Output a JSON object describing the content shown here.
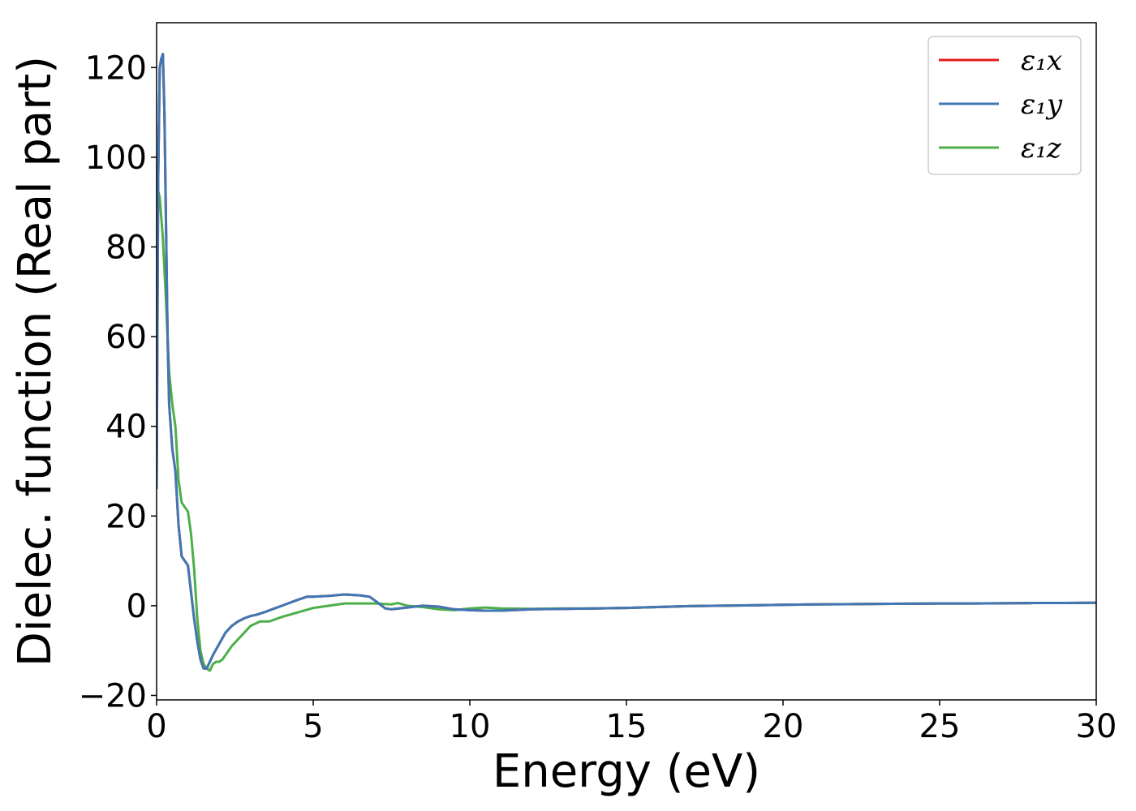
{
  "chart_data": {
    "type": "line",
    "title": "",
    "xlabel": "Energy (eV)",
    "ylabel": "Dielec. function (Real part)",
    "xlim": [
      0,
      30
    ],
    "ylim": [
      -21,
      130
    ],
    "xticks": [
      0,
      5,
      10,
      15,
      20,
      25,
      30
    ],
    "xtick_labels": [
      "0",
      "5",
      "10",
      "15",
      "20",
      "25",
      "30"
    ],
    "yticks": [
      -20,
      0,
      20,
      40,
      60,
      80,
      100,
      120
    ],
    "ytick_labels": [
      "−20",
      "0",
      "20",
      "40",
      "60",
      "80",
      "100",
      "120"
    ],
    "grid": false,
    "legend_position": "top-right",
    "series": [
      {
        "name": "ε₁x",
        "color": "#e41a1c",
        "x": [
          0,
          0.05,
          0.1,
          0.15,
          0.2,
          0.25,
          0.3,
          0.35,
          0.4,
          0.5,
          0.6,
          0.7,
          0.8,
          0.9,
          1.0,
          1.1,
          1.2,
          1.3,
          1.4,
          1.5,
          1.6,
          1.7,
          1.8,
          2.0,
          2.2,
          2.4,
          2.6,
          2.8,
          3.0,
          3.2,
          3.5,
          4.0,
          4.5,
          4.8,
          5.0,
          5.5,
          6.0,
          6.5,
          6.8,
          7.0,
          7.3,
          7.5,
          8.0,
          8.5,
          9.0,
          9.5,
          10.0,
          10.5,
          11.0,
          12.0,
          13.0,
          14.0,
          15.0,
          16.0,
          17.0,
          18.0,
          19.0,
          20.0,
          21.0,
          22.0,
          23.0,
          24.0,
          25.0,
          26.0,
          27.0,
          28.0,
          29.0,
          30.0
        ],
        "y": [
          26,
          95,
          120,
          122,
          123,
          110,
          85,
          60,
          45,
          35,
          30,
          18,
          11,
          10,
          9,
          3,
          -3,
          -8,
          -12,
          -14,
          -14,
          -12.5,
          -11,
          -8.5,
          -6,
          -4.5,
          -3.5,
          -2.8,
          -2.3,
          -2,
          -1.3,
          0,
          1.3,
          2,
          2,
          2.2,
          2.5,
          2.3,
          2.0,
          1.0,
          -0.6,
          -0.8,
          -0.4,
          0,
          -0.2,
          -0.8,
          -1.0,
          -1.1,
          -1.1,
          -0.8,
          -0.7,
          -0.6,
          -0.5,
          -0.3,
          -0.1,
          0.0,
          0.1,
          0.2,
          0.3,
          0.35,
          0.4,
          0.45,
          0.5,
          0.5,
          0.55,
          0.6,
          0.6,
          0.65
        ]
      },
      {
        "name": "ε₁y",
        "color": "#3f78b4",
        "x": [
          0,
          0.05,
          0.1,
          0.15,
          0.2,
          0.25,
          0.3,
          0.35,
          0.4,
          0.5,
          0.6,
          0.7,
          0.8,
          0.9,
          1.0,
          1.1,
          1.2,
          1.3,
          1.4,
          1.5,
          1.6,
          1.7,
          1.8,
          2.0,
          2.2,
          2.4,
          2.6,
          2.8,
          3.0,
          3.2,
          3.5,
          4.0,
          4.5,
          4.8,
          5.0,
          5.5,
          6.0,
          6.5,
          6.8,
          7.0,
          7.3,
          7.5,
          8.0,
          8.5,
          9.0,
          9.5,
          10.0,
          10.5,
          11.0,
          12.0,
          13.0,
          14.0,
          15.0,
          16.0,
          17.0,
          18.0,
          19.0,
          20.0,
          21.0,
          22.0,
          23.0,
          24.0,
          25.0,
          26.0,
          27.0,
          28.0,
          29.0,
          30.0
        ],
        "y": [
          26,
          95,
          120,
          122,
          123,
          110,
          85,
          60,
          45,
          35,
          30,
          18,
          11,
          10,
          9,
          3,
          -3,
          -8,
          -12,
          -14,
          -14,
          -12.5,
          -11,
          -8.5,
          -6,
          -4.5,
          -3.5,
          -2.8,
          -2.3,
          -2,
          -1.3,
          0,
          1.3,
          2,
          2,
          2.2,
          2.5,
          2.3,
          2.0,
          1.0,
          -0.6,
          -0.8,
          -0.4,
          0,
          -0.2,
          -0.8,
          -1.0,
          -1.1,
          -1.1,
          -0.8,
          -0.7,
          -0.6,
          -0.5,
          -0.3,
          -0.1,
          0.0,
          0.1,
          0.2,
          0.3,
          0.35,
          0.4,
          0.45,
          0.5,
          0.5,
          0.55,
          0.6,
          0.6,
          0.65
        ]
      },
      {
        "name": "ε₁z",
        "color": "#4daf4a",
        "x": [
          0,
          0.1,
          0.2,
          0.3,
          0.4,
          0.5,
          0.6,
          0.7,
          0.8,
          0.9,
          1.0,
          1.1,
          1.2,
          1.3,
          1.4,
          1.5,
          1.6,
          1.7,
          1.8,
          1.9,
          2.0,
          2.1,
          2.2,
          2.4,
          2.6,
          2.8,
          3.0,
          3.3,
          3.6,
          4.0,
          4.5,
          5.0,
          5.5,
          6.0,
          6.5,
          7.0,
          7.5,
          7.7,
          8.0,
          8.5,
          9.0,
          9.5,
          10.0,
          10.5,
          11.0,
          12.0,
          13.0,
          14.0,
          15.0,
          16.0,
          17.0,
          18.0,
          19.0,
          20.0,
          21.0,
          22.0,
          23.0,
          24.0,
          25.0,
          26.0,
          27.0,
          28.0,
          29.0,
          30.0
        ],
        "y": [
          94,
          91,
          82,
          68,
          52,
          45,
          40,
          28,
          23,
          22,
          21,
          16,
          8,
          -3,
          -10,
          -13,
          -14,
          -14.5,
          -13,
          -12.5,
          -12.5,
          -12,
          -11,
          -9,
          -7.5,
          -6,
          -4.5,
          -3.5,
          -3.5,
          -2.5,
          -1.5,
          -0.5,
          0,
          0.5,
          0.5,
          0.5,
          0.3,
          0.6,
          0,
          -0.3,
          -0.8,
          -1.0,
          -0.6,
          -0.4,
          -0.6,
          -0.7,
          -0.6,
          -0.6,
          -0.5,
          -0.3,
          -0.1,
          0.0,
          0.1,
          0.2,
          0.3,
          0.35,
          0.4,
          0.45,
          0.5,
          0.5,
          0.55,
          0.6,
          0.6,
          0.65
        ]
      }
    ]
  }
}
